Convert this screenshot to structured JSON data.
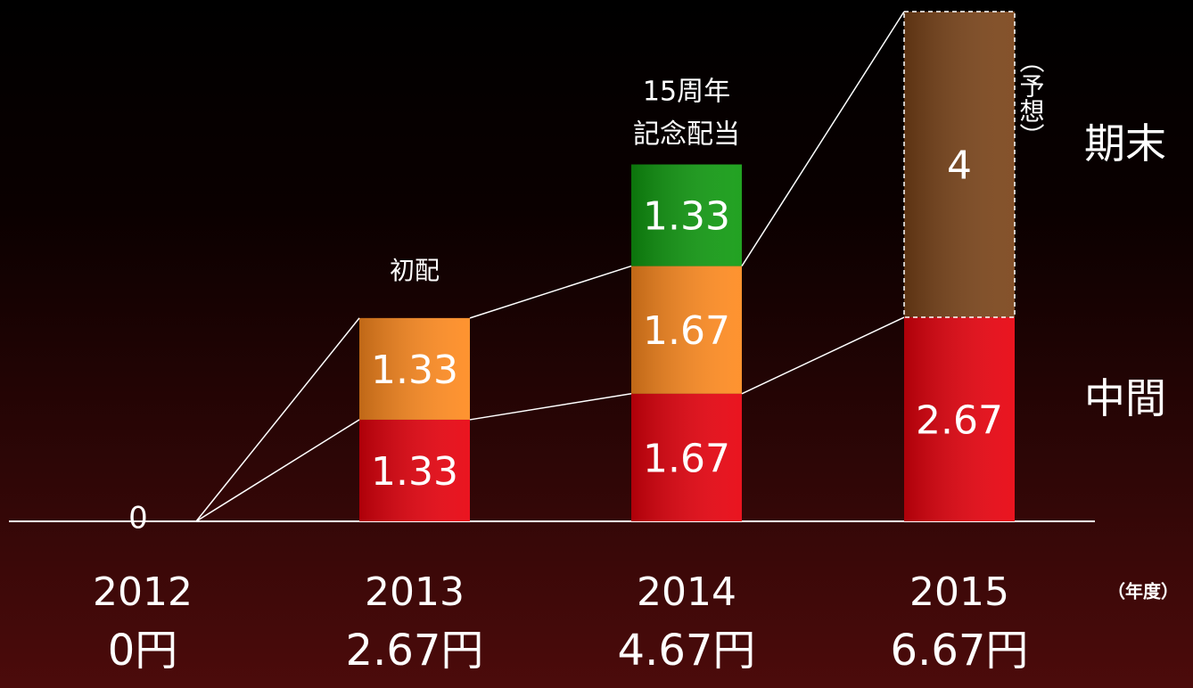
{
  "chart_data": {
    "type": "bar",
    "stacked": true,
    "categories": [
      "2012",
      "2013",
      "2014",
      "2015"
    ],
    "x_unit": "（年度）",
    "ylim": [
      0,
      6.67
    ],
    "series": [
      {
        "name": "中間",
        "color": "#e8000c",
        "values": [
          0,
          1.33,
          1.67,
          2.67
        ]
      },
      {
        "name": "期末",
        "color": "#ff8a1e",
        "colors": [
          "#ff8a1e",
          "#ff8a1e",
          "#ff8a1e",
          "#7a4318"
        ],
        "dashed": [
          false,
          false,
          false,
          true
        ],
        "values": [
          null,
          1.33,
          1.67,
          4
        ]
      },
      {
        "color": "#0f9a0f",
        "values": [
          null,
          null,
          1.33,
          null
        ]
      }
    ],
    "totals": {
      "values": [
        0,
        2.67,
        4.67,
        6.67
      ],
      "value_labels": [
        "0円",
        "2.67円",
        "4.67円",
        "6.67円"
      ]
    },
    "annotations": [
      "初配",
      "15周年",
      "記念配当",
      "（予想）"
    ]
  }
}
